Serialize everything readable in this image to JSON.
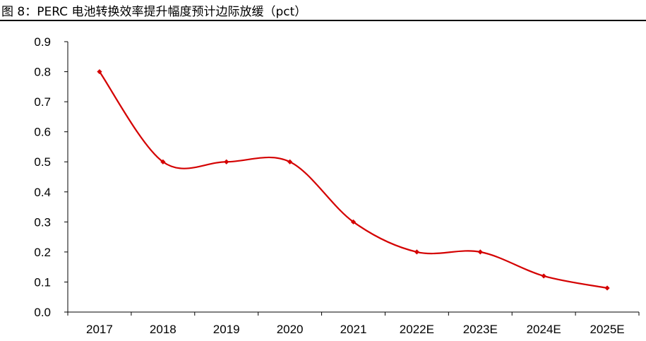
{
  "title": "图 8：PERC 电池转换效率提升幅度预计边际放缓（pct）",
  "colors": {
    "series": "#d40000",
    "axis": "#000000"
  },
  "chart_data": {
    "type": "line",
    "title": "图 8：PERC 电池转换效率提升幅度预计边际放缓（pct）",
    "categories": [
      "2017",
      "2018",
      "2019",
      "2020",
      "2021",
      "2022E",
      "2023E",
      "2024E",
      "2025E"
    ],
    "series": [
      {
        "values": [
          0.8,
          0.5,
          0.5,
          0.5,
          0.3,
          0.2,
          0.2,
          0.12,
          0.08
        ]
      }
    ],
    "ylim": [
      0,
      0.9
    ],
    "yticks": [
      "0.0",
      "0.1",
      "0.2",
      "0.3",
      "0.4",
      "0.5",
      "0.6",
      "0.7",
      "0.8",
      "0.9"
    ],
    "xlabel": "",
    "ylabel": "",
    "grid": false,
    "legend": "none",
    "smooth": true,
    "marker": "diamond"
  }
}
